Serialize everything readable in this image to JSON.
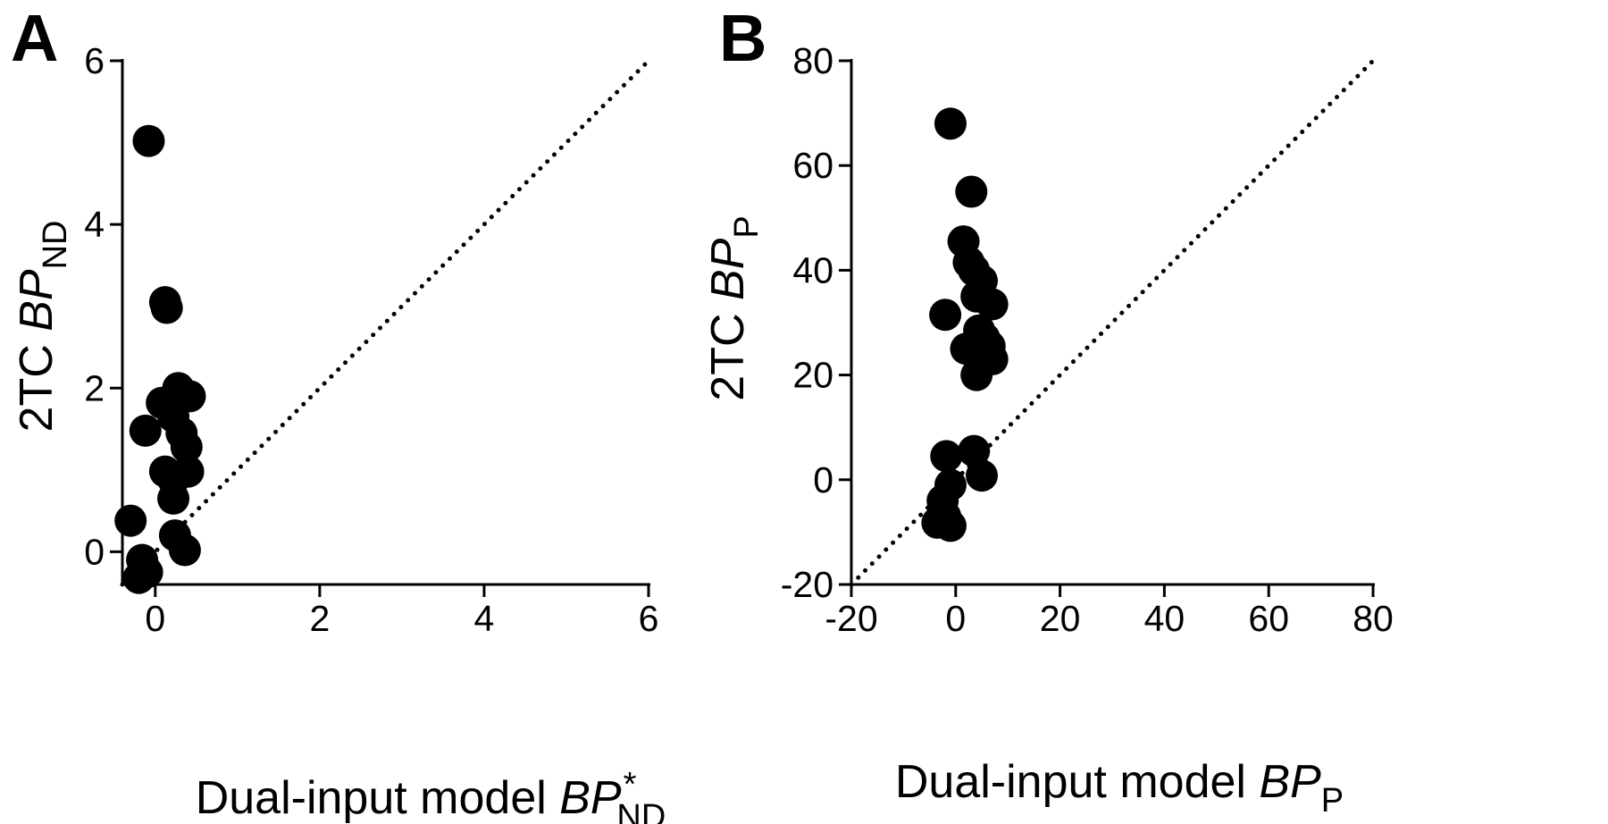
{
  "chart_data": [
    {
      "panel": "A",
      "type": "scatter",
      "xlabel": {
        "prefix": "Dual-input model ",
        "main": "BP",
        "sub": "ND",
        "sup": "*"
      },
      "ylabel": {
        "prefix": "2TC ",
        "main": "BP",
        "sub": "ND"
      },
      "xlim": [
        -0.4,
        6
      ],
      "ylim": [
        -0.4,
        6
      ],
      "xticks": [
        0,
        2,
        4,
        6
      ],
      "yticks": [
        0,
        2,
        4,
        6
      ],
      "identity_line": true,
      "points": [
        {
          "x": -0.08,
          "y": 5.02
        },
        {
          "x": 0.12,
          "y": 3.05
        },
        {
          "x": 0.14,
          "y": 2.98
        },
        {
          "x": 0.28,
          "y": 2.0
        },
        {
          "x": 0.42,
          "y": 1.9
        },
        {
          "x": 0.08,
          "y": 1.82
        },
        {
          "x": 0.22,
          "y": 1.65
        },
        {
          "x": -0.12,
          "y": 1.48
        },
        {
          "x": 0.32,
          "y": 1.45
        },
        {
          "x": 0.38,
          "y": 1.28
        },
        {
          "x": 0.12,
          "y": 0.98
        },
        {
          "x": 0.4,
          "y": 0.98
        },
        {
          "x": 0.22,
          "y": 0.88
        },
        {
          "x": 0.22,
          "y": 0.65
        },
        {
          "x": -0.3,
          "y": 0.38
        },
        {
          "x": 0.24,
          "y": 0.2
        },
        {
          "x": 0.36,
          "y": 0.02
        },
        {
          "x": -0.16,
          "y": -0.1
        },
        {
          "x": -0.1,
          "y": -0.25
        },
        {
          "x": -0.2,
          "y": -0.32
        }
      ]
    },
    {
      "panel": "B",
      "type": "scatter",
      "xlabel": {
        "prefix": "Dual-input model ",
        "main": "BP",
        "sub": "P"
      },
      "ylabel": {
        "prefix": "2TC ",
        "main": "BP",
        "sub": "P"
      },
      "xlim": [
        -20,
        80
      ],
      "ylim": [
        -20,
        80
      ],
      "xticks": [
        -20,
        0,
        20,
        40,
        60,
        80
      ],
      "yticks": [
        -20,
        0,
        20,
        40,
        60,
        80
      ],
      "identity_line": true,
      "points": [
        {
          "x": -1,
          "y": 68
        },
        {
          "x": 3,
          "y": 55
        },
        {
          "x": 1.5,
          "y": 45.5
        },
        {
          "x": 2.5,
          "y": 41.5
        },
        {
          "x": 3.5,
          "y": 40
        },
        {
          "x": 5,
          "y": 38
        },
        {
          "x": 4,
          "y": 35
        },
        {
          "x": 7,
          "y": 33.5
        },
        {
          "x": -2,
          "y": 31.5
        },
        {
          "x": 4.5,
          "y": 28.5
        },
        {
          "x": 5.5,
          "y": 27
        },
        {
          "x": 6.5,
          "y": 25.5
        },
        {
          "x": 2,
          "y": 25
        },
        {
          "x": 5,
          "y": 24
        },
        {
          "x": 7,
          "y": 23
        },
        {
          "x": 4,
          "y": 20
        },
        {
          "x": 3.5,
          "y": 5.5
        },
        {
          "x": 5,
          "y": 0.8
        },
        {
          "x": -1.8,
          "y": 4.5
        },
        {
          "x": -1,
          "y": -1
        },
        {
          "x": -2.5,
          "y": -4
        },
        {
          "x": -2,
          "y": -7
        },
        {
          "x": -3.5,
          "y": -8.2
        },
        {
          "x": -1,
          "y": -8.8
        }
      ]
    }
  ],
  "colors": {
    "marker": "#000000",
    "axis": "#000000",
    "identity_line": "#000000"
  }
}
